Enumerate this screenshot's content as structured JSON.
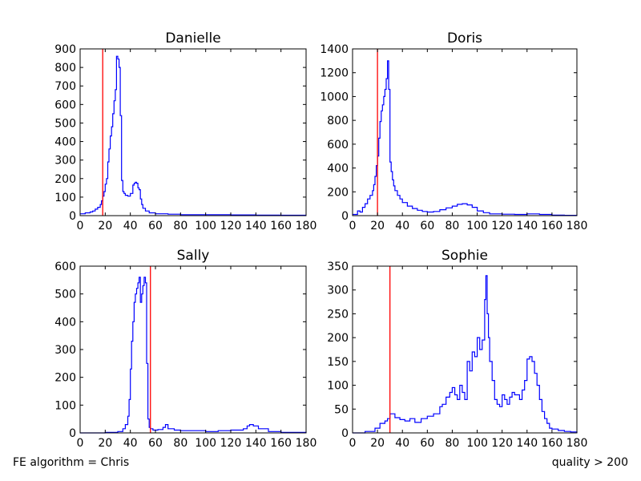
{
  "figure": {
    "footer_left": "FE algorithm = Chris",
    "footer_right": "quality > 200"
  },
  "colors": {
    "histogram": "#0000ff",
    "threshold": "#ff0000",
    "axes": "#000000"
  },
  "chart_data": [
    {
      "type": "line",
      "step": true,
      "title": "Danielle",
      "xlim": [
        0,
        180
      ],
      "ylim": [
        0,
        900
      ],
      "xticks": [
        0,
        20,
        40,
        60,
        80,
        100,
        120,
        140,
        160,
        180
      ],
      "yticks": [
        0,
        100,
        200,
        300,
        400,
        500,
        600,
        700,
        800,
        900
      ],
      "threshold": 18,
      "series": [
        {
          "x": [
            0,
            4,
            8,
            10,
            12,
            14,
            16,
            17,
            18,
            19,
            20,
            21,
            22,
            23,
            24,
            25,
            26,
            27,
            28,
            29,
            30,
            31,
            32,
            33,
            34,
            35,
            36,
            38,
            40,
            42,
            43,
            44,
            45,
            46,
            47,
            48,
            49,
            50,
            52,
            55,
            60,
            70,
            80,
            100,
            120,
            140,
            160,
            180
          ],
          "y": [
            10,
            15,
            20,
            25,
            35,
            45,
            60,
            80,
            105,
            130,
            170,
            200,
            290,
            360,
            430,
            480,
            550,
            620,
            680,
            860,
            845,
            800,
            540,
            190,
            130,
            120,
            110,
            105,
            120,
            165,
            175,
            180,
            175,
            150,
            140,
            90,
            60,
            40,
            25,
            15,
            10,
            8,
            5,
            5,
            4,
            3,
            2,
            2
          ]
        }
      ]
    },
    {
      "type": "line",
      "step": true,
      "title": "Doris",
      "xlim": [
        0,
        180
      ],
      "ylim": [
        0,
        1400
      ],
      "xticks": [
        0,
        20,
        40,
        60,
        80,
        100,
        120,
        140,
        160,
        180
      ],
      "yticks": [
        0,
        200,
        400,
        600,
        800,
        1000,
        1200,
        1400
      ],
      "threshold": 20,
      "series": [
        {
          "x": [
            0,
            4,
            6,
            8,
            10,
            12,
            14,
            16,
            17,
            18,
            19,
            20,
            21,
            22,
            23,
            24,
            25,
            26,
            27,
            28,
            29,
            30,
            31,
            32,
            33,
            34,
            36,
            38,
            40,
            44,
            48,
            52,
            56,
            60,
            65,
            70,
            75,
            80,
            84,
            88,
            92,
            96,
            100,
            105,
            110,
            120,
            130,
            140,
            150,
            160,
            170,
            180
          ],
          "y": [
            10,
            40,
            30,
            70,
            100,
            140,
            170,
            210,
            260,
            330,
            420,
            500,
            650,
            790,
            880,
            930,
            1000,
            1060,
            1150,
            1300,
            1060,
            450,
            370,
            300,
            250,
            210,
            170,
            140,
            110,
            80,
            60,
            45,
            35,
            30,
            35,
            50,
            65,
            80,
            95,
            100,
            90,
            70,
            40,
            25,
            15,
            12,
            10,
            15,
            10,
            5,
            3,
            2
          ]
        }
      ]
    },
    {
      "type": "line",
      "step": true,
      "title": "Sally",
      "xlim": [
        0,
        180
      ],
      "ylim": [
        0,
        600
      ],
      "xticks": [
        0,
        20,
        40,
        60,
        80,
        100,
        120,
        140,
        160,
        180
      ],
      "yticks": [
        0,
        100,
        200,
        300,
        400,
        500,
        600
      ],
      "threshold": 56,
      "series": [
        {
          "x": [
            0,
            20,
            30,
            34,
            36,
            38,
            39,
            40,
            41,
            42,
            43,
            44,
            45,
            46,
            47,
            48,
            49,
            50,
            51,
            52,
            53,
            54,
            55,
            56,
            58,
            62,
            66,
            68,
            70,
            75,
            80,
            90,
            100,
            110,
            120,
            130,
            133,
            135,
            138,
            142,
            150,
            160,
            180
          ],
          "y": [
            0,
            2,
            5,
            15,
            30,
            60,
            120,
            230,
            330,
            400,
            470,
            500,
            520,
            540,
            560,
            470,
            500,
            530,
            560,
            540,
            250,
            50,
            20,
            15,
            10,
            12,
            20,
            30,
            15,
            10,
            8,
            8,
            5,
            8,
            10,
            15,
            25,
            30,
            25,
            15,
            5,
            2,
            0
          ]
        }
      ]
    },
    {
      "type": "line",
      "step": true,
      "title": "Sophie",
      "xlim": [
        0,
        180
      ],
      "ylim": [
        0,
        350
      ],
      "xticks": [
        0,
        20,
        40,
        60,
        80,
        100,
        120,
        140,
        160,
        180
      ],
      "yticks": [
        0,
        50,
        100,
        150,
        200,
        250,
        300,
        350
      ],
      "threshold": 30,
      "series": [
        {
          "x": [
            0,
            10,
            18,
            22,
            26,
            28,
            30,
            34,
            38,
            42,
            46,
            50,
            55,
            60,
            65,
            70,
            72,
            75,
            78,
            80,
            82,
            84,
            86,
            88,
            90,
            92,
            94,
            96,
            98,
            100,
            102,
            104,
            106,
            107,
            108,
            109,
            110,
            112,
            114,
            116,
            118,
            120,
            122,
            124,
            126,
            128,
            130,
            132,
            134,
            136,
            138,
            140,
            142,
            144,
            146,
            148,
            150,
            152,
            154,
            156,
            158,
            160,
            165,
            170,
            175,
            180
          ],
          "y": [
            0,
            3,
            10,
            20,
            25,
            30,
            40,
            32,
            28,
            25,
            30,
            22,
            30,
            35,
            40,
            55,
            60,
            75,
            85,
            95,
            80,
            70,
            100,
            85,
            70,
            150,
            130,
            170,
            160,
            200,
            175,
            195,
            280,
            330,
            250,
            200,
            150,
            110,
            70,
            60,
            55,
            80,
            70,
            60,
            75,
            85,
            80,
            80,
            70,
            90,
            110,
            155,
            160,
            150,
            125,
            100,
            70,
            45,
            30,
            20,
            10,
            8,
            5,
            3,
            2,
            0
          ]
        }
      ]
    }
  ]
}
